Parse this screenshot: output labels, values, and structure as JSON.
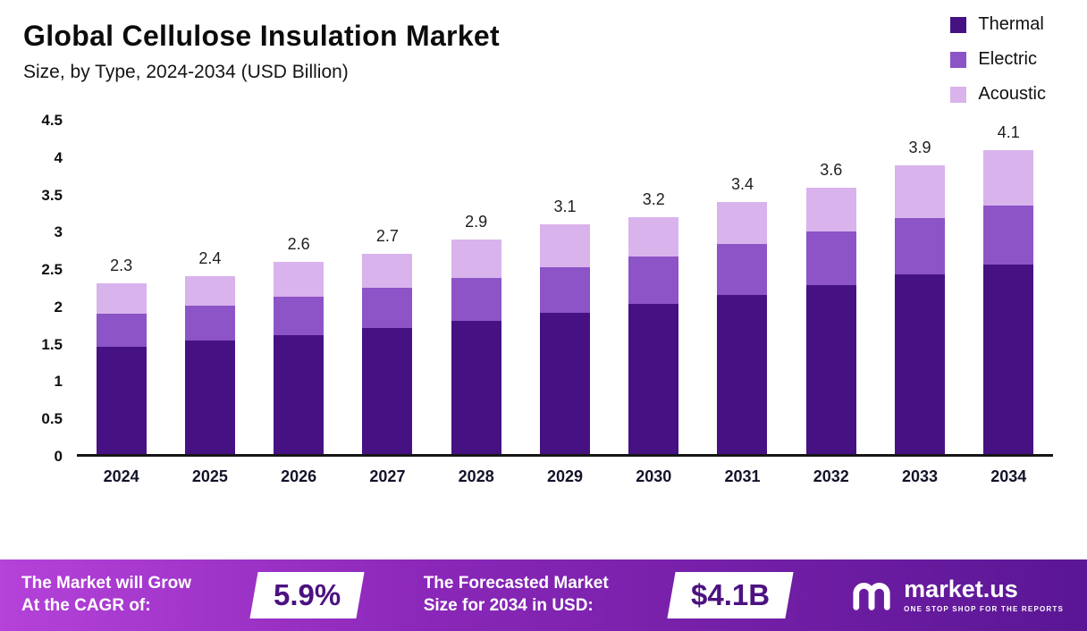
{
  "header": {
    "title": "Global Cellulose Insulation Market",
    "subtitle": "Size, by Type, 2024-2034 (USD Billion)"
  },
  "legend": [
    {
      "label": "Thermal",
      "color": "#461283"
    },
    {
      "label": "Electric",
      "color": "#8c54c6"
    },
    {
      "label": "Acoustic",
      "color": "#d9b3ec"
    }
  ],
  "chart_data": {
    "type": "bar",
    "stacked": true,
    "title": "Global Cellulose Insulation Market Size, by Type, 2024-2034 (USD Billion)",
    "xlabel": "",
    "ylabel": "",
    "ylim": [
      0,
      4.5
    ],
    "yticks": [
      0,
      0.5,
      1,
      1.5,
      2,
      2.5,
      3,
      3.5,
      4,
      4.5
    ],
    "grid": false,
    "legend_position": "top-right",
    "categories": [
      2024,
      2025,
      2026,
      2027,
      2028,
      2029,
      2030,
      2031,
      2032,
      2033,
      2034
    ],
    "series": [
      {
        "name": "Thermal",
        "color": "#461283",
        "values": [
          1.45,
          1.53,
          1.61,
          1.7,
          1.8,
          1.91,
          2.03,
          2.15,
          2.28,
          2.42,
          2.56
        ]
      },
      {
        "name": "Electric",
        "color": "#8c54c6",
        "values": [
          0.45,
          0.47,
          0.51,
          0.55,
          0.58,
          0.61,
          0.64,
          0.68,
          0.72,
          0.76,
          0.8
        ]
      },
      {
        "name": "Acoustic",
        "color": "#d9b3ec",
        "values": [
          0.4,
          0.4,
          0.48,
          0.45,
          0.52,
          0.58,
          0.53,
          0.57,
          0.6,
          0.72,
          0.74
        ]
      }
    ],
    "totals": [
      2.3,
      2.4,
      2.6,
      2.7,
      2.9,
      3.1,
      3.2,
      3.4,
      3.6,
      3.9,
      4.1
    ]
  },
  "banner": {
    "cagr_label_line1": "The Market will Grow",
    "cagr_label_line2": "At the CAGR of:",
    "cagr_value": "5.9%",
    "forecast_label_line1": "The Forecasted Market",
    "forecast_label_line2": "Size for 2034 in USD:",
    "forecast_value": "$4.1B",
    "brand_name": "market.us",
    "brand_tagline": "ONE STOP SHOP FOR THE REPORTS"
  }
}
